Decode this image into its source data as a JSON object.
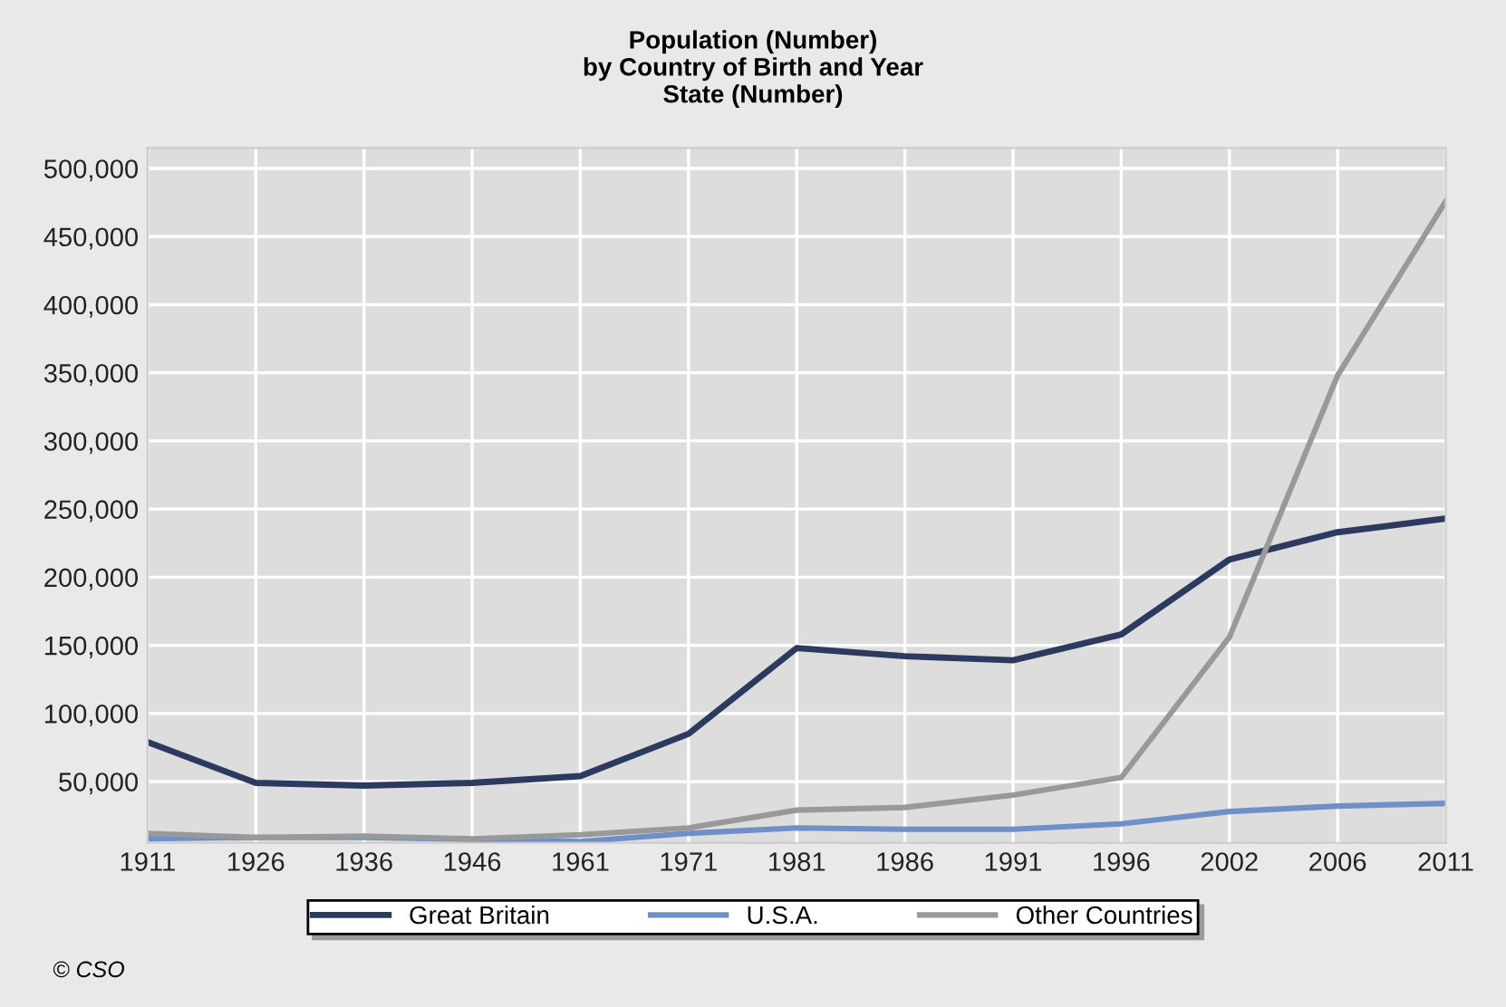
{
  "chart_data": {
    "type": "line",
    "title": "Population (Number)\nby Country of Birth and Year\nState (Number)",
    "categories": [
      "1911",
      "1926",
      "1936",
      "1946",
      "1961",
      "1971",
      "1981",
      "1986",
      "1991",
      "1996",
      "2002",
      "2006",
      "2011"
    ],
    "series": [
      {
        "name": "Great Britain",
        "color": "#2b3a5e",
        "values": [
          79000,
          49000,
          47000,
          49000,
          54000,
          85000,
          148000,
          142000,
          139000,
          158000,
          213000,
          233000,
          243000
        ]
      },
      {
        "name": "U.S.A.",
        "color": "#6f8fc8",
        "values": [
          8000,
          9000,
          9000,
          7500,
          6000,
          12000,
          16000,
          15000,
          15000,
          19000,
          28000,
          32000,
          34000
        ]
      },
      {
        "name": "Other Countries",
        "color": "#999999",
        "values": [
          12000,
          9000,
          10000,
          8000,
          11000,
          16000,
          29000,
          31000,
          40000,
          53000,
          156000,
          348000,
          476000
        ]
      }
    ],
    "ylim": [
      5000,
      515000
    ],
    "yticks": [
      {
        "value": 50000,
        "label": "50,000"
      },
      {
        "value": 100000,
        "label": "100,000"
      },
      {
        "value": 150000,
        "label": "150,000"
      },
      {
        "value": 200000,
        "label": "200,000"
      },
      {
        "value": 250000,
        "label": "250,000"
      },
      {
        "value": 300000,
        "label": "300,000"
      },
      {
        "value": 350000,
        "label": "350,000"
      },
      {
        "value": 400000,
        "label": "400,000"
      },
      {
        "value": 450000,
        "label": "450,000"
      },
      {
        "value": 500000,
        "label": "500,000"
      }
    ],
    "grid": true,
    "legend": "bottom",
    "annotations": [
      "© CSO"
    ]
  }
}
